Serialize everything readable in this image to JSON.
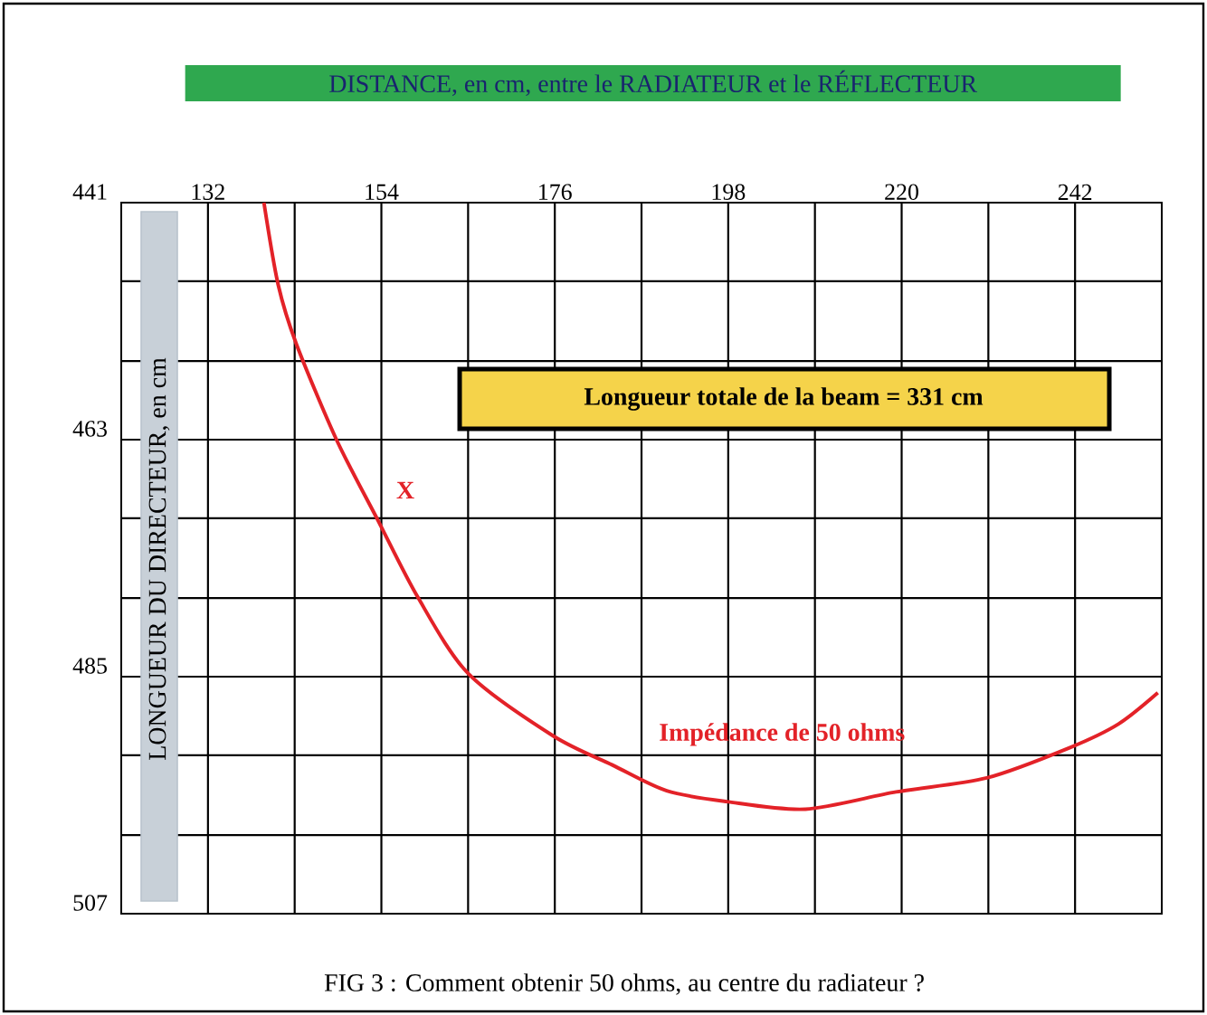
{
  "chart_data": {
    "type": "line",
    "xlabel": "DISTANCE, en cm, entre le RADIATEUR et le RÉFLECTEUR",
    "ylabel": "LONGUEUR DU DIRECTEUR, en cm",
    "xlim": [
      121,
      253
    ],
    "ylim": [
      507,
      441
    ],
    "xticks": [
      132,
      {
        "value": 143,
        "label": null
      },
      154,
      {
        "value": 165,
        "label": null
      },
      176,
      {
        "value": 187,
        "label": null
      },
      198,
      {
        "value": 209,
        "label": null
      },
      220,
      {
        "value": 231,
        "label": null
      },
      242
    ],
    "yticks": [
      441,
      {
        "value": 448.3,
        "label": null
      },
      {
        "value": 455.7,
        "label": null
      },
      463,
      {
        "value": 470.3,
        "label": null
      },
      {
        "value": 477.7,
        "label": null
      },
      485,
      {
        "value": 492.3,
        "label": null
      },
      {
        "value": 499.7,
        "label": null
      },
      507
    ],
    "grid": true,
    "series": [
      {
        "name": "Impédance de 50 ohms",
        "color": "#e32228",
        "x": [
          139.1,
          140.9,
          143.2,
          148.3,
          153.5,
          158.6,
          165.0,
          175.8,
          183.3,
          190.2,
          197.8,
          207.8,
          219.3,
          230.8,
          241.3,
          247.5,
          252.5
        ],
        "values": [
          441,
          448.6,
          454.1,
          463.0,
          470.4,
          477.6,
          484.7,
          490.5,
          493.2,
          495.6,
          496.6,
          497.3,
          495.7,
          494.4,
          491.6,
          489.4,
          486.5
        ]
      }
    ],
    "annotations": [
      "X",
      "Longueur totale de la beam = 331 cm",
      "FIG 3 : Comment obtenir 50 ohms, au centre du radiateur ?"
    ]
  }
}
